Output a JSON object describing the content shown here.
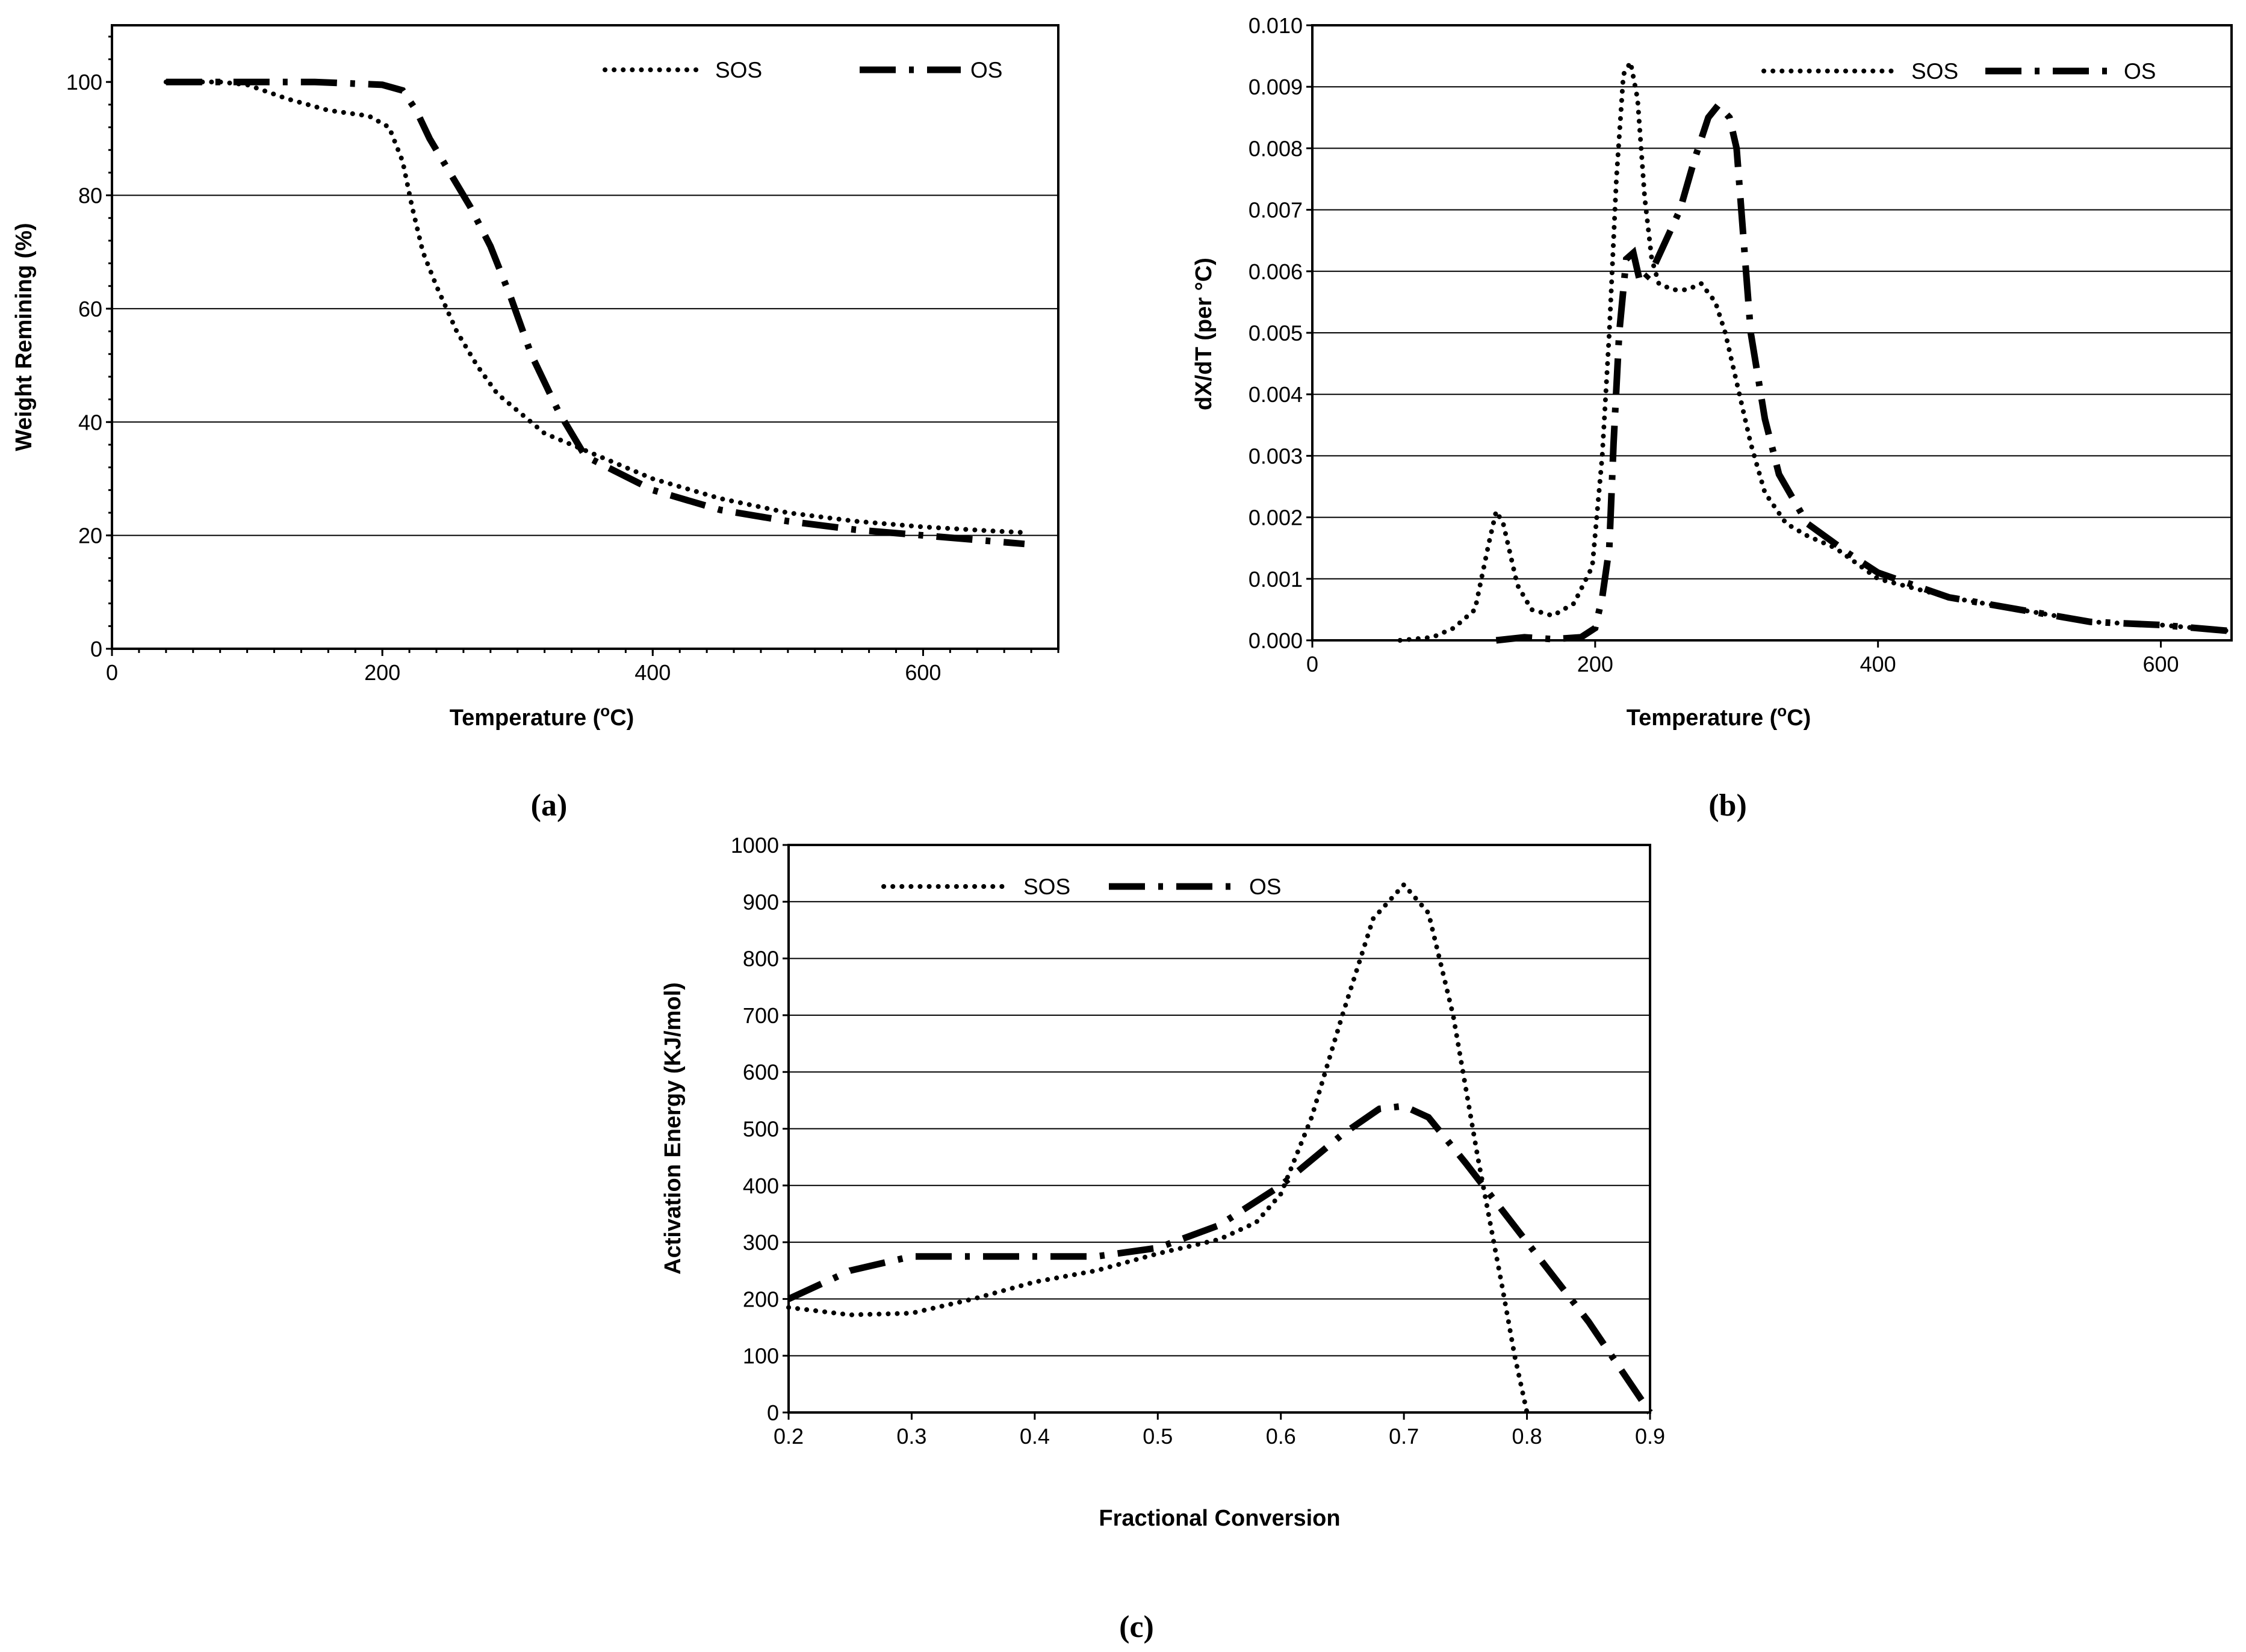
{
  "chart_data": [
    {
      "id": "a",
      "type": "line",
      "caption": "(a)",
      "xlabel_main": "Temperature (",
      "xlabel_sup": "o",
      "xlabel_tail": "C)",
      "ylabel": "Weight Remining (%)",
      "xlim": [
        0,
        700
      ],
      "ylim": [
        0,
        110
      ],
      "xticks": [
        0,
        200,
        400,
        600
      ],
      "yticks": [
        0,
        20,
        40,
        60,
        80,
        100
      ],
      "legend": {
        "position": "top-right",
        "entries": [
          "SOS",
          "OS"
        ]
      },
      "series": [
        {
          "name": "SOS",
          "style": "dotted",
          "x": [
            40,
            80,
            100,
            130,
            160,
            190,
            205,
            215,
            222,
            230,
            240,
            255,
            270,
            285,
            300,
            320,
            340,
            360,
            400,
            450,
            500,
            550,
            600,
            650,
            675
          ],
          "y": [
            100,
            100,
            99.5,
            97,
            95,
            94,
            92,
            86,
            78,
            70,
            64,
            56,
            50,
            45,
            42,
            38,
            36,
            34,
            30,
            26.5,
            24,
            22.5,
            21.5,
            20.8,
            20.5
          ]
        },
        {
          "name": "OS",
          "style": "dash-dot",
          "x": [
            40,
            100,
            150,
            200,
            215,
            225,
            235,
            250,
            265,
            280,
            295,
            310,
            330,
            350,
            400,
            450,
            500,
            550,
            600,
            650,
            675
          ],
          "y": [
            100,
            100,
            100,
            99.5,
            98.5,
            95,
            90,
            84,
            78,
            71,
            62,
            52,
            42,
            34,
            28,
            24.5,
            22.5,
            21,
            20,
            19,
            18.5
          ]
        }
      ]
    },
    {
      "id": "b",
      "type": "line",
      "caption": "(b)",
      "xlabel_main": "Temperature (",
      "xlabel_sup": "o",
      "xlabel_tail": "C)",
      "ylabel": "dX/dT (per °C)",
      "xlim": [
        0,
        650
      ],
      "ylim": [
        0,
        0.01
      ],
      "xticks": [
        0,
        200,
        400,
        600
      ],
      "yticks": [
        "0.000",
        "0.001",
        "0.002",
        "0.003",
        "0.004",
        "0.005",
        "0.006",
        "0.007",
        "0.008",
        "0.009",
        "0.010"
      ],
      "legend": {
        "position": "top-right",
        "entries": [
          "SOS",
          "OS"
        ]
      },
      "series": [
        {
          "name": "SOS",
          "style": "dotted",
          "x": [
            62,
            85,
            100,
            115,
            125,
            130,
            135,
            145,
            155,
            170,
            185,
            198,
            205,
            210,
            215,
            220,
            225,
            230,
            235,
            240,
            245,
            255,
            265,
            275,
            285,
            292,
            300,
            310,
            320,
            335,
            350,
            370,
            400,
            450,
            500,
            550,
            600,
            650
          ],
          "y": [
            0,
            5e-05,
            0.0002,
            0.0005,
            0.0016,
            0.0021,
            0.0019,
            0.0009,
            0.0005,
            0.0004,
            0.0006,
            0.0012,
            0.003,
            0.005,
            0.0075,
            0.0092,
            0.0094,
            0.0088,
            0.0072,
            0.0062,
            0.0058,
            0.0057,
            0.0057,
            0.0058,
            0.0055,
            0.005,
            0.0042,
            0.0032,
            0.0024,
            0.0019,
            0.0017,
            0.0015,
            0.001,
            0.0007,
            0.0005,
            0.0003,
            0.00025,
            0.00015
          ]
        },
        {
          "name": "OS",
          "style": "dash-dot",
          "x": [
            130,
            150,
            170,
            190,
            200,
            205,
            210,
            213,
            217,
            222,
            227,
            232,
            240,
            250,
            260,
            270,
            280,
            287,
            295,
            300,
            305,
            310,
            320,
            330,
            350,
            380,
            400,
            450,
            500,
            550,
            600,
            650
          ],
          "y": [
            0,
            5e-05,
            2e-05,
            5e-05,
            0.0002,
            0.0007,
            0.0015,
            0.0032,
            0.005,
            0.0062,
            0.0063,
            0.0058,
            0.006,
            0.0065,
            0.007,
            0.0078,
            0.0085,
            0.0087,
            0.0085,
            0.008,
            0.0065,
            0.005,
            0.0036,
            0.0027,
            0.0019,
            0.0014,
            0.0011,
            0.0007,
            0.0005,
            0.0003,
            0.00025,
            0.00015
          ]
        }
      ]
    },
    {
      "id": "c",
      "type": "line",
      "caption": "(c)",
      "xlabel": "Fractional Conversion",
      "ylabel": "Activation Energy (KJ/mol)",
      "xlim": [
        0.2,
        0.9
      ],
      "ylim": [
        0,
        1000
      ],
      "xticks": [
        "0.2",
        "0.3",
        "0.4",
        "0.5",
        "0.6",
        "0.7",
        "0.8",
        "0.9"
      ],
      "yticks": [
        0,
        100,
        200,
        300,
        400,
        500,
        600,
        700,
        800,
        900,
        1000
      ],
      "legend": {
        "position": "top-left",
        "entries": [
          "SOS",
          "OS"
        ]
      },
      "series": [
        {
          "name": "SOS",
          "style": "dotted",
          "x": [
            0.2,
            0.25,
            0.3,
            0.35,
            0.4,
            0.45,
            0.5,
            0.55,
            0.58,
            0.6,
            0.625,
            0.65,
            0.675,
            0.7,
            0.72,
            0.74,
            0.76,
            0.78,
            0.79,
            0.8
          ],
          "y": [
            185,
            172,
            175,
            200,
            230,
            250,
            280,
            305,
            335,
            385,
            520,
            700,
            870,
            930,
            880,
            700,
            450,
            220,
            100,
            0
          ]
        },
        {
          "name": "OS",
          "style": "dash-dot",
          "x": [
            0.2,
            0.25,
            0.3,
            0.35,
            0.4,
            0.45,
            0.5,
            0.55,
            0.6,
            0.65,
            0.68,
            0.7,
            0.72,
            0.75,
            0.8,
            0.85,
            0.9
          ],
          "y": [
            200,
            250,
            275,
            275,
            275,
            275,
            290,
            330,
            400,
            490,
            535,
            540,
            520,
            440,
            300,
            160,
            0
          ]
        }
      ]
    }
  ]
}
